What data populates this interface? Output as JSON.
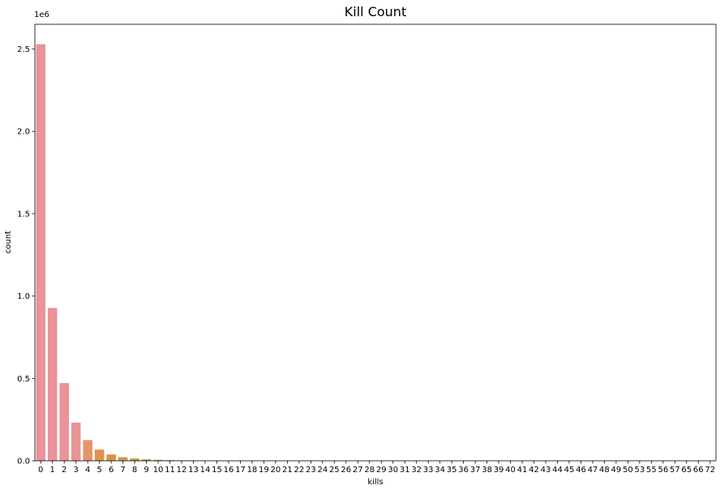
{
  "chart_data": {
    "type": "bar",
    "title": "Kill Count",
    "xlabel": "kills",
    "ylabel": "count",
    "offset_label": "1e6",
    "ylim": [
      0,
      2.65
    ],
    "yticks": [
      0.0,
      0.5,
      1.0,
      1.5,
      2.0,
      2.5
    ],
    "ytick_labels": [
      "0.0",
      "0.5",
      "1.0",
      "1.5",
      "2.0",
      "2.5"
    ],
    "grid": false,
    "categories": [
      "0",
      "1",
      "2",
      "3",
      "4",
      "5",
      "6",
      "7",
      "8",
      "9",
      "10",
      "11",
      "12",
      "13",
      "14",
      "15",
      "16",
      "17",
      "18",
      "19",
      "20",
      "21",
      "22",
      "23",
      "24",
      "25",
      "26",
      "27",
      "28",
      "29",
      "30",
      "31",
      "32",
      "33",
      "34",
      "35",
      "36",
      "37",
      "38",
      "39",
      "40",
      "41",
      "42",
      "43",
      "44",
      "45",
      "46",
      "47",
      "48",
      "49",
      "50",
      "53",
      "55",
      "56",
      "57",
      "65",
      "66",
      "72"
    ],
    "values": [
      2.529,
      0.928,
      0.472,
      0.232,
      0.126,
      0.068,
      0.038,
      0.022,
      0.014,
      0.009,
      0.006,
      0.004,
      0.003,
      0.002,
      0.0015,
      0.001,
      0.0008,
      0.0006,
      0.0005,
      0.0004,
      0.0003,
      0.0003,
      0.0002,
      0.0002,
      0.0001,
      0.0001,
      0.0001,
      0.0001,
      0.0001,
      0.0001,
      0.0001,
      0.0001,
      0.0001,
      0.0001,
      0.0001,
      0.0001,
      0.0001,
      0.0001,
      0.0001,
      0.0001,
      0.0001,
      0.0001,
      0.0001,
      0.0001,
      0.0001,
      0.0001,
      0.0001,
      0.0001,
      0.0001,
      0.0001,
      0.0001,
      0.0001,
      0.0001,
      0.0001,
      0.0001,
      0.0001,
      0.0001,
      0.0001
    ],
    "colors": [
      "#ea9399",
      "#ea9399",
      "#ea9399",
      "#e99496",
      "#e5946e",
      "#e19250",
      "#d99244",
      "#d19543",
      "#c79a41",
      "#bb9e3f",
      "#af9f3d",
      "#a2a23b",
      "#94a53a"
    ]
  }
}
